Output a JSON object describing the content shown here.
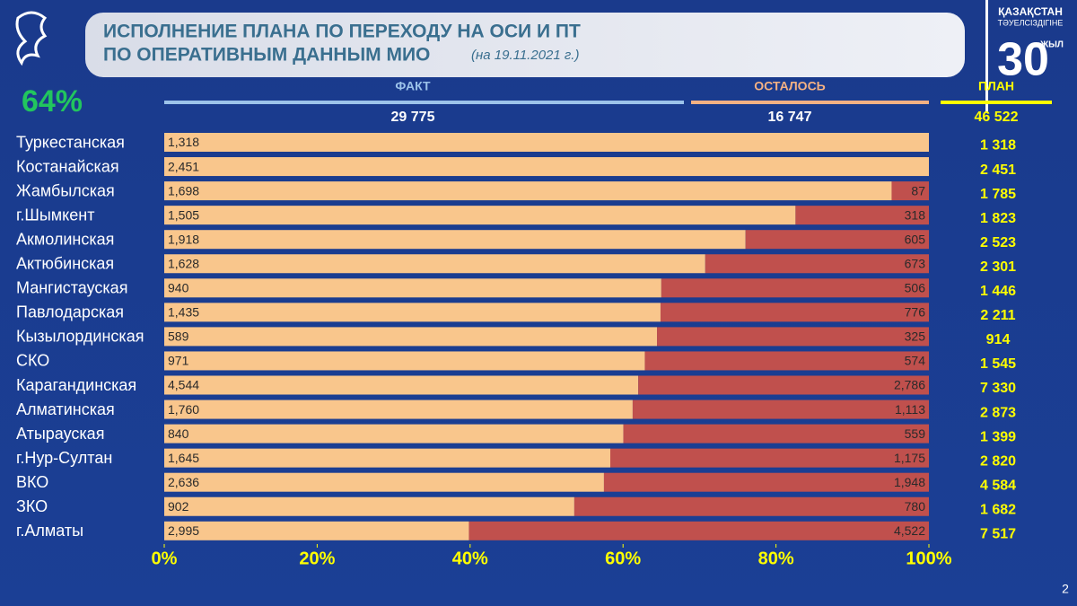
{
  "chart_data": {
    "type": "bar",
    "title": [
      "ИСПОЛНЕНИЕ ПЛАНА ПО ПЕРЕХОДУ НА ОСИ И ПТ",
      "ПО ОПЕРАТИВНЫМ ДАННЫМ МИО"
    ],
    "subtitle": "(на 19.11.2021 г.)",
    "percent_complete": {
      "value": 64,
      "label": "64%"
    },
    "categories": [
      "Туркестанская",
      "Костанайская",
      "Жамбылская",
      "г.Шымкент",
      "Акмолинская",
      "Актюбинская",
      "Мангистауская",
      "Павлодарская",
      "Кызылординская",
      "СКО",
      "Карагандинская",
      "Алматинская",
      "Атырауская",
      "г.Нур-Султан",
      "ВКО",
      "ЗКО",
      "г.Алматы"
    ],
    "series": [
      {
        "name": "ФАКТ",
        "color": "#f9c68c",
        "header_color": "#9cc3ea",
        "total": 29775,
        "total_label": "29 775",
        "values": [
          1318,
          2451,
          1698,
          1505,
          1918,
          1628,
          940,
          1435,
          589,
          971,
          4544,
          1760,
          840,
          1645,
          2636,
          902,
          2995
        ],
        "value_labels": [
          "1,318",
          "2,451",
          "1,698",
          "1,505",
          "1,918",
          "1,628",
          "940",
          "1,435",
          "589",
          "971",
          "4,544",
          "1,760",
          "840",
          "1,645",
          "2,636",
          "902",
          "2,995"
        ]
      },
      {
        "name": "ОСТАЛОСЬ",
        "color": "#c0504d",
        "header_color": "#f4b183",
        "total": 16747,
        "total_label": "16 747",
        "values": [
          0,
          0,
          87,
          318,
          605,
          673,
          506,
          776,
          325,
          574,
          2786,
          1113,
          559,
          1175,
          1948,
          780,
          4522
        ],
        "value_labels": [
          null,
          null,
          "87",
          "318",
          "605",
          "673",
          "506",
          "776",
          "325",
          "574",
          "2,786",
          "1,113",
          "559",
          "1,175",
          "1,948",
          "780",
          "4,522"
        ]
      }
    ],
    "plan": {
      "name": "ПЛАН",
      "color": "#ffff00",
      "total": 46522,
      "total_label": "46 522",
      "values": [
        1318,
        2451,
        1785,
        1823,
        2523,
        2301,
        1446,
        2211,
        914,
        1545,
        7330,
        2873,
        1399,
        2820,
        4584,
        1682,
        7517
      ],
      "value_labels": [
        "1 318",
        "2 451",
        "1 785",
        "1 823",
        "2 523",
        "2 301",
        "1 446",
        "2 211",
        "914",
        "1 545",
        "7 330",
        "2 873",
        "1 399",
        "2 820",
        "4 584",
        "1 682",
        "7 517"
      ]
    },
    "xlim": [
      0,
      100
    ],
    "xticks": [
      {
        "value": 0,
        "label": "0%"
      },
      {
        "value": 20,
        "label": "20%"
      },
      {
        "value": 40,
        "label": "40%"
      },
      {
        "value": 60,
        "label": "60%"
      },
      {
        "value": 80,
        "label": "80%"
      },
      {
        "value": 100,
        "label": "100%"
      }
    ],
    "logo": [
      "ҚАЗАҚСТАН",
      "ТӘУЕЛСІЗДІГІНЕ",
      "30",
      "ЖЫЛ"
    ],
    "page_number": "2"
  }
}
